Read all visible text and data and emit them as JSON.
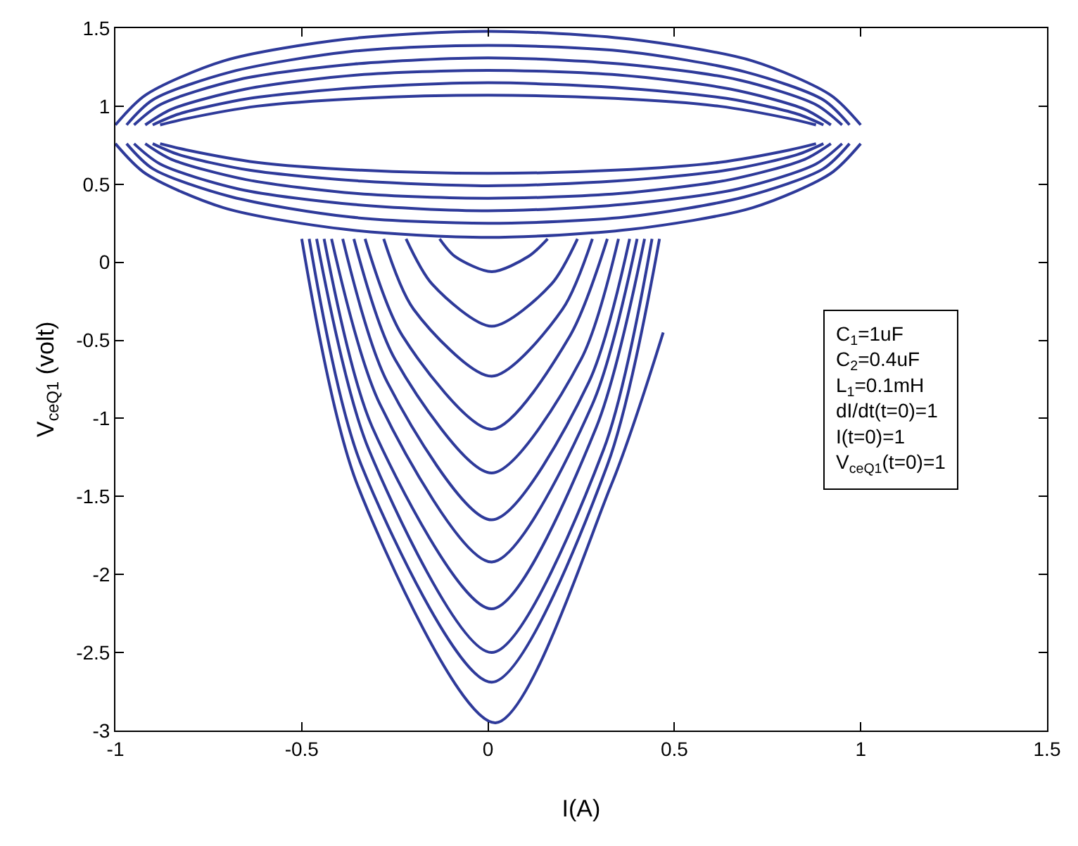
{
  "chart_data": {
    "type": "line",
    "xlabel": "I(A)",
    "ylabel": "V$_{ceQ1}$ (volt)",
    "xlim": [
      -1,
      1.5
    ],
    "xticks": [
      -1,
      -0.5,
      0,
      0.5,
      1,
      1.5
    ],
    "ylim": [
      -3,
      1.5
    ],
    "yticks": [
      -3,
      -2.5,
      -2,
      -1.5,
      -1,
      -0.5,
      0,
      0.5,
      1,
      1.5
    ],
    "grid": false,
    "marker": "none",
    "line_style": "solid",
    "annotations": [
      "C$_{1}$=1uF",
      "C$_{2}$=0.4uF",
      "L$_{1}$=0.1mH",
      "dI/dt(t=0)=1",
      "I(t=0)=1",
      "V$_{ceQ1}$(t=0)=1"
    ],
    "series": [
      {
        "color": "#2e3a9a",
        "x": [
          -0.88,
          -0.81,
          -0.62,
          -0.34,
          0,
          0.34,
          0.62,
          0.81,
          0.88
        ],
        "values": [
          0.88,
          0.92,
          1.0,
          1.05,
          1.07,
          1.05,
          1.0,
          0.92,
          0.88
        ]
      },
      {
        "color": "#2e3a9a",
        "x": [
          -0.88,
          -0.81,
          -0.62,
          -0.34,
          0,
          0.34,
          0.62,
          0.81,
          0.88
        ],
        "values": [
          0.76,
          0.72,
          0.64,
          0.59,
          0.57,
          0.59,
          0.64,
          0.72,
          0.76
        ]
      },
      {
        "color": "#2e3a9a",
        "x": [
          -0.9,
          -0.83,
          -0.64,
          -0.34,
          0,
          0.34,
          0.64,
          0.83,
          0.9
        ],
        "values": [
          0.88,
          0.95,
          1.05,
          1.12,
          1.15,
          1.12,
          1.05,
          0.95,
          0.88
        ]
      },
      {
        "color": "#2e3a9a",
        "x": [
          -0.9,
          -0.83,
          -0.64,
          -0.34,
          0,
          0.34,
          0.64,
          0.83,
          0.9
        ],
        "values": [
          0.76,
          0.69,
          0.59,
          0.52,
          0.49,
          0.52,
          0.59,
          0.69,
          0.76
        ]
      },
      {
        "color": "#2e3a9a",
        "x": [
          -0.92,
          -0.85,
          -0.65,
          -0.35,
          0,
          0.35,
          0.65,
          0.85,
          0.92
        ],
        "values": [
          0.88,
          0.98,
          1.11,
          1.2,
          1.23,
          1.2,
          1.11,
          0.98,
          0.88
        ]
      },
      {
        "color": "#2e3a9a",
        "x": [
          -0.92,
          -0.85,
          -0.65,
          -0.35,
          0,
          0.35,
          0.65,
          0.85,
          0.92
        ],
        "values": [
          0.76,
          0.66,
          0.53,
          0.44,
          0.41,
          0.44,
          0.53,
          0.66,
          0.76
        ]
      },
      {
        "color": "#2e3a9a",
        "x": [
          -0.95,
          -0.88,
          -0.67,
          -0.36,
          0,
          0.36,
          0.67,
          0.88,
          0.95
        ],
        "values": [
          0.88,
          1.01,
          1.17,
          1.27,
          1.31,
          1.27,
          1.17,
          1.01,
          0.88
        ]
      },
      {
        "color": "#2e3a9a",
        "x": [
          -0.95,
          -0.88,
          -0.67,
          -0.36,
          0,
          0.36,
          0.67,
          0.88,
          0.95
        ],
        "values": [
          0.76,
          0.63,
          0.47,
          0.37,
          0.33,
          0.37,
          0.47,
          0.63,
          0.76
        ]
      },
      {
        "color": "#2e3a9a",
        "x": [
          -0.97,
          -0.9,
          -0.69,
          -0.37,
          0,
          0.37,
          0.69,
          0.9,
          0.97
        ],
        "values": [
          0.88,
          1.04,
          1.22,
          1.35,
          1.39,
          1.35,
          1.22,
          1.04,
          0.88
        ]
      },
      {
        "color": "#2e3a9a",
        "x": [
          -0.97,
          -0.9,
          -0.69,
          -0.37,
          0,
          0.37,
          0.69,
          0.9,
          0.97
        ],
        "values": [
          0.76,
          0.6,
          0.42,
          0.29,
          0.25,
          0.29,
          0.42,
          0.6,
          0.76
        ]
      },
      {
        "color": "#2e3a9a",
        "x": [
          -1,
          -0.92,
          -0.71,
          -0.38,
          0,
          0.38,
          0.71,
          0.92,
          1
        ],
        "values": [
          0.88,
          1.07,
          1.29,
          1.43,
          1.48,
          1.43,
          1.29,
          1.07,
          0.88
        ]
      },
      {
        "color": "#2e3a9a",
        "x": [
          -1,
          -0.92,
          -0.71,
          -0.38,
          0,
          0.38,
          0.71,
          0.92,
          1
        ],
        "values": [
          0.76,
          0.57,
          0.35,
          0.21,
          0.16,
          0.21,
          0.35,
          0.57,
          0.76
        ]
      },
      {
        "color": "#2e3a9a",
        "x": [
          -0.13,
          -0.09,
          0.01,
          0.11,
          0.16
        ],
        "values": [
          0.15,
          0.04,
          -0.06,
          0.04,
          0.15
        ]
      },
      {
        "color": "#2e3a9a",
        "x": [
          -0.22,
          -0.15,
          0.01,
          0.17,
          0.24
        ],
        "values": [
          0.15,
          -0.14,
          -0.41,
          -0.14,
          0.15
        ]
      },
      {
        "color": "#2e3a9a",
        "x": [
          -0.28,
          -0.2,
          0.01,
          0.2,
          0.28
        ],
        "values": [
          0.15,
          -0.3,
          -0.73,
          -0.3,
          0.15
        ]
      },
      {
        "color": "#2e3a9a",
        "x": [
          -0.33,
          -0.23,
          0.01,
          0.22,
          0.32
        ],
        "values": [
          0.15,
          -0.47,
          -1.07,
          -0.47,
          0.15
        ]
      },
      {
        "color": "#2e3a9a",
        "x": [
          -0.36,
          -0.25,
          0.01,
          0.25,
          0.35
        ],
        "values": [
          0.15,
          -0.62,
          -1.35,
          -0.62,
          0.15
        ]
      },
      {
        "color": "#2e3a9a",
        "x": [
          -0.39,
          -0.27,
          0.01,
          0.27,
          0.38
        ],
        "values": [
          0.15,
          -0.77,
          -1.65,
          -0.77,
          0.15
        ]
      },
      {
        "color": "#2e3a9a",
        "x": [
          -0.42,
          -0.29,
          0.01,
          0.28,
          0.4
        ],
        "values": [
          0.15,
          -0.91,
          -1.92,
          -0.91,
          0.15
        ]
      },
      {
        "color": "#2e3a9a",
        "x": [
          -0.44,
          -0.31,
          0.01,
          0.29,
          0.42
        ],
        "values": [
          0.15,
          -1.06,
          -2.22,
          -1.06,
          0.15
        ]
      },
      {
        "color": "#2e3a9a",
        "x": [
          -0.46,
          -0.32,
          0.01,
          0.31,
          0.44
        ],
        "values": [
          0.15,
          -1.2,
          -2.5,
          -1.2,
          0.15
        ]
      },
      {
        "color": "#2e3a9a",
        "x": [
          -0.48,
          -0.34,
          0.01,
          0.32,
          0.46
        ],
        "values": [
          0.15,
          -1.3,
          -2.69,
          -1.3,
          0.15
        ]
      },
      {
        "color": "#2e3a9a",
        "x": [
          -0.5,
          -0.35,
          0.02,
          0.33,
          0.47
        ],
        "values": [
          0.15,
          -1.43,
          -2.95,
          -1.43,
          -0.45
        ]
      }
    ]
  }
}
